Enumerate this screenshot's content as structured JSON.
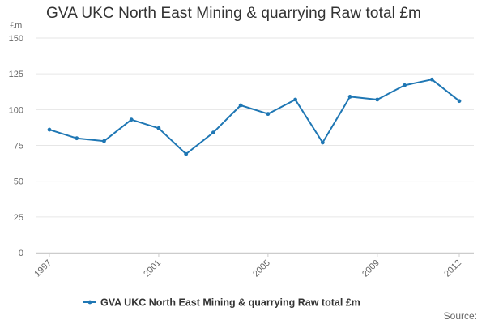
{
  "chart_data": {
    "type": "line",
    "title": "GVA UKC North East Mining & quarrying Raw total £m",
    "ylabel": "£m",
    "xlabel": "",
    "ylim": [
      0,
      150
    ],
    "yticks": [
      0,
      25,
      50,
      75,
      100,
      125,
      150
    ],
    "xticks": [
      "1997",
      "2001",
      "2005",
      "2009",
      "2012"
    ],
    "x": [
      1997,
      1998,
      1999,
      2000,
      2001,
      2002,
      2003,
      2004,
      2005,
      2006,
      2007,
      2008,
      2009,
      2010,
      2011,
      2012
    ],
    "series": [
      {
        "name": "GVA UKC North East Mining & quarrying Raw total £m",
        "color": "#1f77b4",
        "values": [
          86,
          80,
          78,
          93,
          87,
          69,
          84,
          103,
          97,
          107,
          77,
          109,
          107,
          117,
          121,
          106
        ]
      }
    ],
    "grid": true,
    "legend_position": "bottom",
    "source_label": "Source:"
  }
}
